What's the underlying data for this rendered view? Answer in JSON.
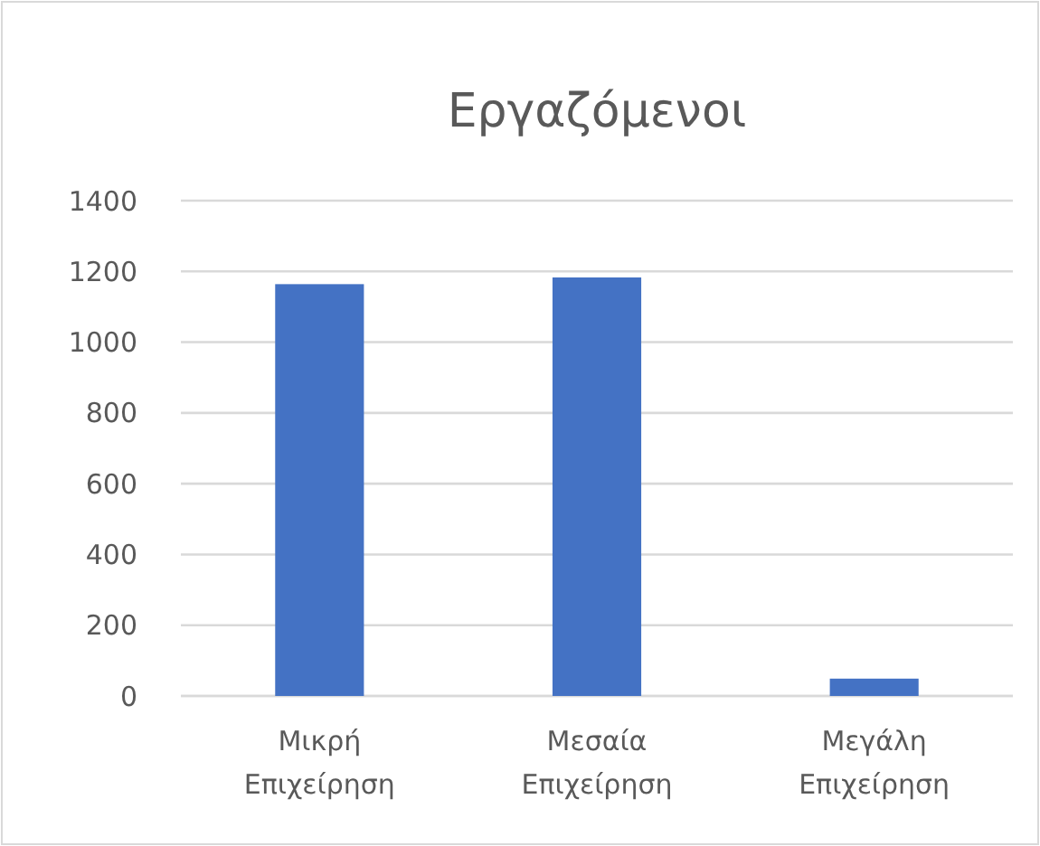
{
  "chart_data": {
    "type": "bar",
    "title": "Εργαζόμενοι",
    "categories": [
      "Μικρή Επιχείρηση",
      "Μεσαία Επιχείρηση",
      "Μεγάλη Επιχείρηση"
    ],
    "values": [
      1164,
      1183,
      49
    ],
    "color": "#4472c4",
    "ylim": [
      0,
      1400
    ],
    "yticks": [
      0,
      200,
      400,
      600,
      800,
      1000,
      1200,
      1400
    ],
    "grid": "y"
  }
}
